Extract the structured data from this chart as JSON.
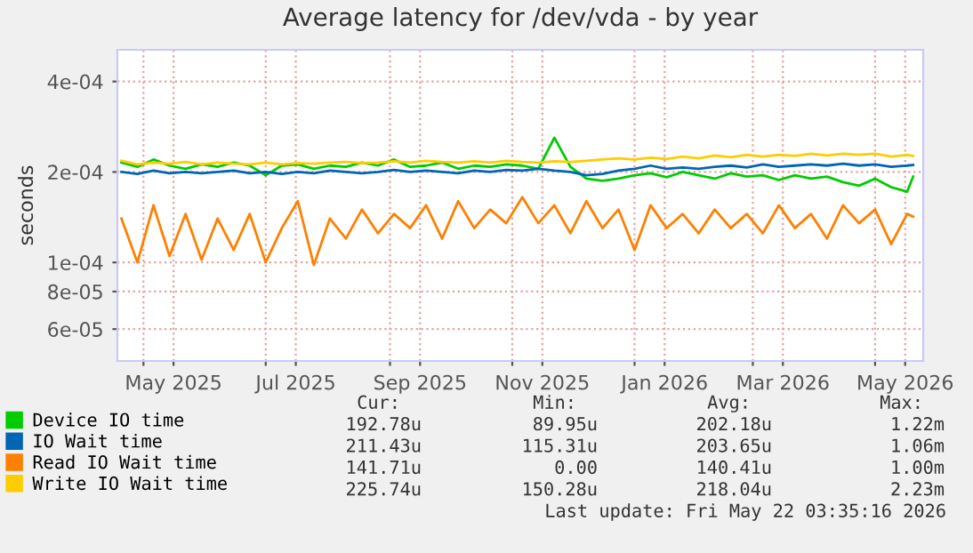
{
  "chart_data": {
    "type": "line",
    "title": "Average latency for /dev/vda - by year",
    "ylabel": "seconds",
    "x": [
      "2025-04-20",
      "2025-04-28",
      "2025-05-06",
      "2025-05-14",
      "2025-05-22",
      "2025-05-30",
      "2025-06-07",
      "2025-06-15",
      "2025-06-23",
      "2025-07-01",
      "2025-07-09",
      "2025-07-17",
      "2025-07-25",
      "2025-08-02",
      "2025-08-10",
      "2025-08-18",
      "2025-08-26",
      "2025-09-03",
      "2025-09-11",
      "2025-09-19",
      "2025-09-27",
      "2025-10-05",
      "2025-10-13",
      "2025-10-21",
      "2025-10-29",
      "2025-11-06",
      "2025-11-14",
      "2025-11-22",
      "2025-11-30",
      "2025-12-08",
      "2025-12-16",
      "2025-12-24",
      "2026-01-01",
      "2026-01-09",
      "2026-01-17",
      "2026-01-25",
      "2026-02-02",
      "2026-02-10",
      "2026-02-18",
      "2026-02-26",
      "2026-03-06",
      "2026-03-14",
      "2026-03-22",
      "2026-03-30",
      "2026-04-07",
      "2026-04-15",
      "2026-04-23",
      "2026-05-01",
      "2026-05-09",
      "2026-05-17",
      "2026-05-20"
    ],
    "series": [
      {
        "name": "Device IO time",
        "color": "#00cc00",
        "values": [
          0.000215,
          0.000208,
          0.00022,
          0.00021,
          0.000205,
          0.000212,
          0.000208,
          0.000215,
          0.00021,
          0.000195,
          0.00021,
          0.000212,
          0.000205,
          0.00021,
          0.000208,
          0.000215,
          0.00021,
          0.00022,
          0.000208,
          0.00021,
          0.000215,
          0.000205,
          0.00021,
          0.000208,
          0.000212,
          0.00021,
          0.000205,
          0.00026,
          0.000208,
          0.00019,
          0.000187,
          0.00019,
          0.000195,
          0.000198,
          0.000192,
          0.0002,
          0.000195,
          0.00019,
          0.000198,
          0.000193,
          0.000195,
          0.000188,
          0.000195,
          0.00019,
          0.000193,
          0.000185,
          0.00018,
          0.00019,
          0.000178,
          0.000172,
          0.000193
        ]
      },
      {
        "name": "IO Wait time",
        "color": "#0066b3",
        "values": [
          0.0002,
          0.000197,
          0.000202,
          0.000198,
          0.0002,
          0.000198,
          0.0002,
          0.000202,
          0.000198,
          0.0002,
          0.000197,
          0.0002,
          0.000198,
          0.000202,
          0.0002,
          0.000198,
          0.0002,
          0.000203,
          0.0002,
          0.000202,
          0.0002,
          0.000198,
          0.000202,
          0.0002,
          0.000203,
          0.000202,
          0.000205,
          0.000202,
          0.0002,
          0.000195,
          0.000197,
          0.000202,
          0.000205,
          0.00021,
          0.000205,
          0.000207,
          0.000205,
          0.000208,
          0.00021,
          0.000207,
          0.000212,
          0.000208,
          0.00021,
          0.000212,
          0.00021,
          0.000213,
          0.00021,
          0.000212,
          0.000208,
          0.00021,
          0.000211
        ]
      },
      {
        "name": "Read IO Wait time",
        "color": "#ff8000",
        "values": [
          0.00014,
          0.0001,
          0.000155,
          0.000105,
          0.000145,
          0.000102,
          0.00014,
          0.00011,
          0.000145,
          0.0001,
          0.00013,
          0.00016,
          9.8e-05,
          0.00014,
          0.00012,
          0.00015,
          0.000125,
          0.000145,
          0.00013,
          0.000155,
          0.00012,
          0.00016,
          0.00013,
          0.00015,
          0.000135,
          0.000165,
          0.000135,
          0.000155,
          0.000125,
          0.00016,
          0.00013,
          0.00015,
          0.00011,
          0.000155,
          0.00013,
          0.000145,
          0.000125,
          0.00015,
          0.00013,
          0.000145,
          0.000125,
          0.000155,
          0.00013,
          0.000145,
          0.00012,
          0.000155,
          0.000135,
          0.00015,
          0.000115,
          0.000145,
          0.000142
        ]
      },
      {
        "name": "Write IO Wait time",
        "color": "#ffcc00",
        "values": [
          0.000218,
          0.000212,
          0.000215,
          0.000213,
          0.000216,
          0.000212,
          0.000215,
          0.000213,
          0.000212,
          0.000215,
          0.000212,
          0.000214,
          0.000213,
          0.000215,
          0.000216,
          0.000214,
          0.000215,
          0.000217,
          0.000215,
          0.000218,
          0.000216,
          0.000215,
          0.000217,
          0.000215,
          0.000218,
          0.000216,
          0.000215,
          0.000217,
          0.000216,
          0.000218,
          0.00022,
          0.000222,
          0.00022,
          0.000223,
          0.000221,
          0.000225,
          0.000222,
          0.000227,
          0.000224,
          0.000228,
          0.000225,
          0.000228,
          0.000226,
          0.00023,
          0.000227,
          0.00023,
          0.000228,
          0.00023,
          0.000225,
          0.000228,
          0.000226
        ]
      }
    ],
    "log": "y",
    "ylim": [
      4.7e-05,
      0.00051
    ],
    "yticks": [
      {
        "value": 6e-05,
        "label": "6e-05"
      },
      {
        "value": 8e-05,
        "label": "8e-05"
      },
      {
        "value": 0.0001,
        "label": "1e-04"
      },
      {
        "value": 0.0002,
        "label": "2e-04"
      },
      {
        "value": 0.0004,
        "label": "4e-04"
      }
    ],
    "xlim": [
      "2025-04-18",
      "2026-05-25"
    ],
    "xticks": [
      {
        "value": "2025-05-01",
        "label": null
      },
      {
        "value": "2025-05-16",
        "label": "May 2025"
      },
      {
        "value": "2025-07-01",
        "label": null
      },
      {
        "value": "2025-07-16",
        "label": "Jul 2025"
      },
      {
        "value": "2025-09-01",
        "label": null
      },
      {
        "value": "2025-09-16",
        "label": "Sep 2025"
      },
      {
        "value": "2025-11-01",
        "label": null
      },
      {
        "value": "2025-11-16",
        "label": "Nov 2025"
      },
      {
        "value": "2026-01-01",
        "label": null
      },
      {
        "value": "2026-01-16",
        "label": "Jan 2026"
      },
      {
        "value": "2026-03-01",
        "label": null
      },
      {
        "value": "2026-03-16",
        "label": "Mar 2026"
      },
      {
        "value": "2026-05-01",
        "label": null
      },
      {
        "value": "2026-05-16",
        "label": "May 2026"
      }
    ],
    "grid": true,
    "legend": "bottom",
    "annotations": [
      "Cur:",
      "Min:",
      "Avg:",
      "Max:",
      "192.78u",
      "89.95u",
      "202.18u",
      "1.22m",
      "211.43u",
      "115.31u",
      "203.65u",
      "1.06m",
      "141.71u",
      "0.00",
      "140.41u",
      "1.00m",
      "225.74u",
      "150.28u",
      "218.04u",
      "2.23m",
      "Last update: Fri May 22 03:35:16 2026"
    ]
  }
}
